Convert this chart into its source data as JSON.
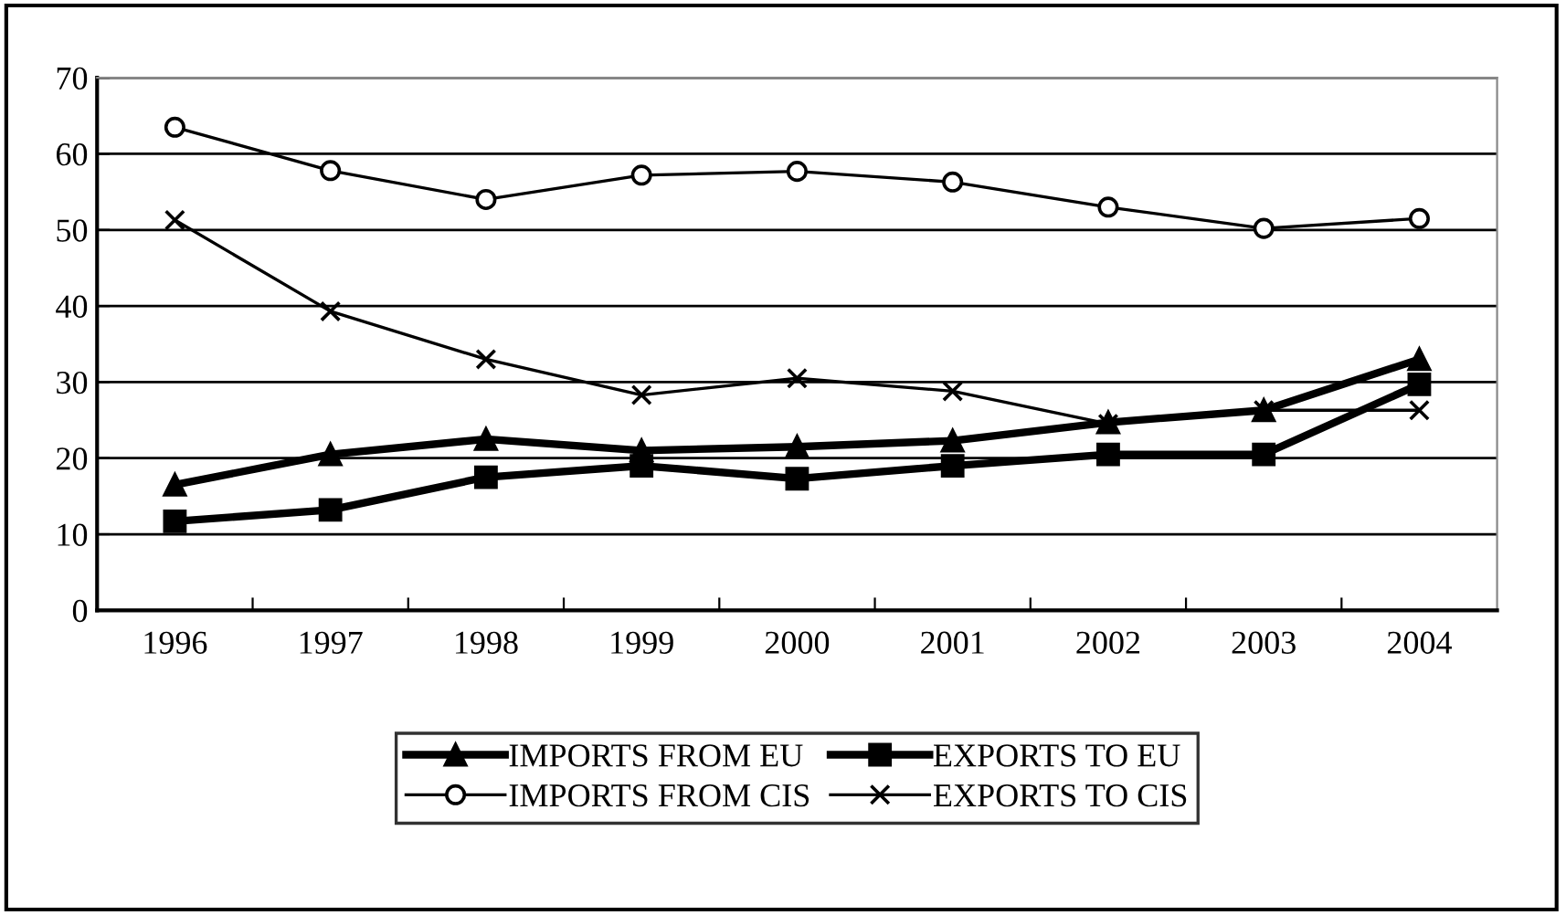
{
  "chart_data": {
    "type": "line",
    "categories": [
      "1996",
      "1997",
      "1998",
      "1999",
      "2000",
      "2001",
      "2002",
      "2003",
      "2004"
    ],
    "series": [
      {
        "name": "IMPORTS FROM EU",
        "color": "#000000",
        "marker": "triangle",
        "values": [
          16.5,
          20.5,
          22.5,
          21,
          21.5,
          22.3,
          24.7,
          26.3,
          33
        ]
      },
      {
        "name": "EXPORTS TO EU",
        "color": "#000000",
        "marker": "square",
        "values": [
          11.7,
          13.2,
          17.5,
          19,
          17.3,
          19,
          20.5,
          20.5,
          29.7
        ]
      },
      {
        "name": "IMPORTS FROM CIS",
        "color": "#000000",
        "marker": "circle",
        "values": [
          63.5,
          57.8,
          54,
          57.2,
          57.7,
          56.3,
          53,
          50.2,
          51.5
        ]
      },
      {
        "name": "EXPORTS TO CIS",
        "color": "#000000",
        "marker": "cross",
        "values": [
          51.3,
          39.3,
          33,
          28.3,
          30.5,
          28.8,
          24.5,
          26.3,
          26.3
        ]
      }
    ],
    "ylim": [
      0,
      70
    ],
    "yticks": [
      0,
      10,
      20,
      30,
      40,
      50,
      60,
      70
    ],
    "grid": "y",
    "legend": "bottom",
    "line_style": "solid"
  }
}
